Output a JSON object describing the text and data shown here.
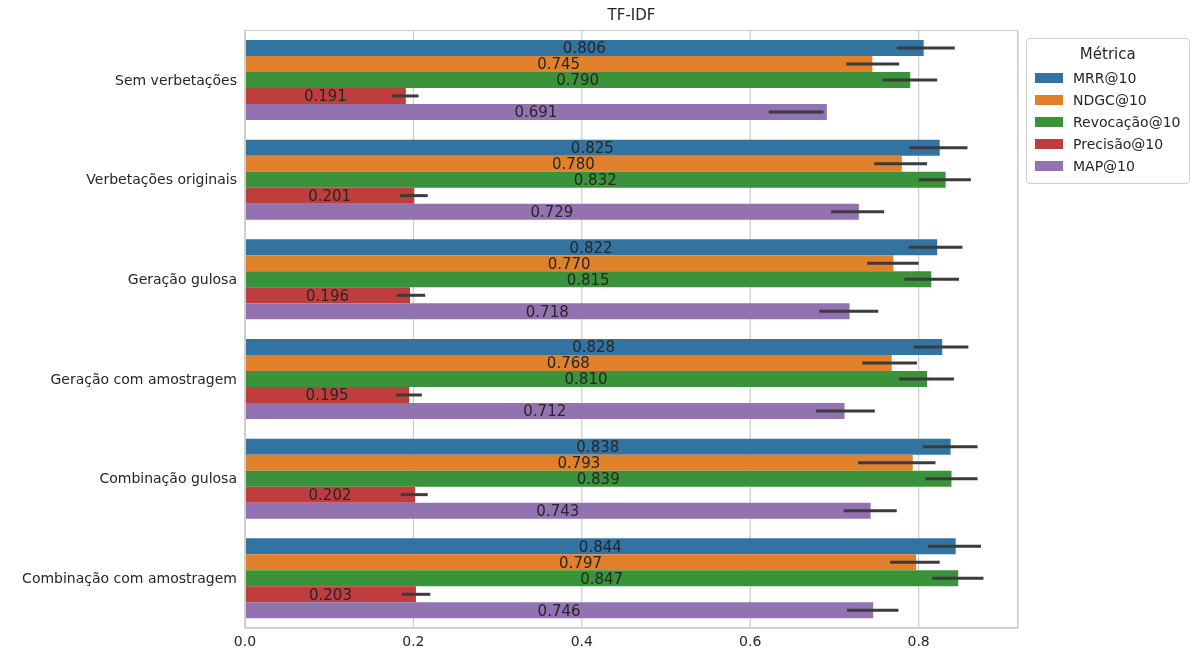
{
  "chart_data": {
    "type": "bar",
    "orientation": "horizontal",
    "title": "TF-IDF",
    "legend_title": "Métrica",
    "legend": "top right",
    "grid": "x",
    "categories": [
      "Sem verbetações",
      "Verbetações originais",
      "Geração gulosa",
      "Geração com amostragem",
      "Combinação gulosa",
      "Combinação com amostragem"
    ],
    "xlim": [
      0,
      0.918
    ],
    "xticks": [
      {
        "value": 0,
        "label": "0.0"
      },
      {
        "value": 0.2,
        "label": "0.2"
      },
      {
        "value": 0.4,
        "label": "0.4"
      },
      {
        "value": 0.6,
        "label": "0.6"
      },
      {
        "value": 0.8,
        "label": "0.8"
      }
    ],
    "series": [
      {
        "name": "MRR@10",
        "color": "#3274a1",
        "values": [
          0.806,
          0.825,
          0.822,
          0.828,
          0.838,
          0.844
        ],
        "value_labels": [
          "0.806",
          "0.825",
          "0.822",
          "0.828",
          "0.838",
          "0.844"
        ],
        "errors": [
          [
            0.774,
            0.843
          ],
          [
            0.789,
            0.858
          ],
          [
            0.788,
            0.852
          ],
          [
            0.794,
            0.859
          ],
          [
            0.805,
            0.87
          ],
          [
            0.811,
            0.874
          ]
        ]
      },
      {
        "name": "NDGC@10",
        "color": "#e1812c",
        "values": [
          0.745,
          0.78,
          0.77,
          0.768,
          0.793,
          0.797
        ],
        "value_labels": [
          "0.745",
          "0.780",
          "0.770",
          "0.768",
          "0.793",
          "0.797"
        ],
        "errors": [
          [
            0.714,
            0.777
          ],
          [
            0.747,
            0.81
          ],
          [
            0.739,
            0.8
          ],
          [
            0.733,
            0.798
          ],
          [
            0.728,
            0.82
          ],
          [
            0.766,
            0.825
          ]
        ]
      },
      {
        "name": "Revocação@10",
        "color": "#3a923a",
        "values": [
          0.79,
          0.832,
          0.815,
          0.81,
          0.839,
          0.847
        ],
        "value_labels": [
          "0.790",
          "0.832",
          "0.815",
          "0.810",
          "0.839",
          "0.847"
        ],
        "errors": [
          [
            0.757,
            0.822
          ],
          [
            0.8,
            0.862
          ],
          [
            0.783,
            0.848
          ],
          [
            0.777,
            0.842
          ],
          [
            0.808,
            0.87
          ],
          [
            0.816,
            0.877
          ]
        ]
      },
      {
        "name": "Precisão@10",
        "color": "#c03d3e",
        "values": [
          0.191,
          0.201,
          0.196,
          0.195,
          0.202,
          0.203
        ],
        "value_labels": [
          "0.191",
          "0.201",
          "0.196",
          "0.195",
          "0.202",
          "0.203"
        ],
        "errors": [
          [
            0.174,
            0.206
          ],
          [
            0.184,
            0.217
          ],
          [
            0.18,
            0.214
          ],
          [
            0.179,
            0.21
          ],
          [
            0.185,
            0.217
          ],
          [
            0.186,
            0.22
          ]
        ]
      },
      {
        "name": "MAP@10",
        "color": "#9372b2",
        "values": [
          0.691,
          0.729,
          0.718,
          0.712,
          0.743,
          0.746
        ],
        "value_labels": [
          "0.691",
          "0.729",
          "0.718",
          "0.712",
          "0.743",
          "0.746"
        ],
        "errors": [
          [
            0.622,
            0.687
          ],
          [
            0.696,
            0.759
          ],
          [
            0.682,
            0.752
          ],
          [
            0.678,
            0.748
          ],
          [
            0.711,
            0.774
          ],
          [
            0.715,
            0.776
          ]
        ]
      }
    ]
  }
}
